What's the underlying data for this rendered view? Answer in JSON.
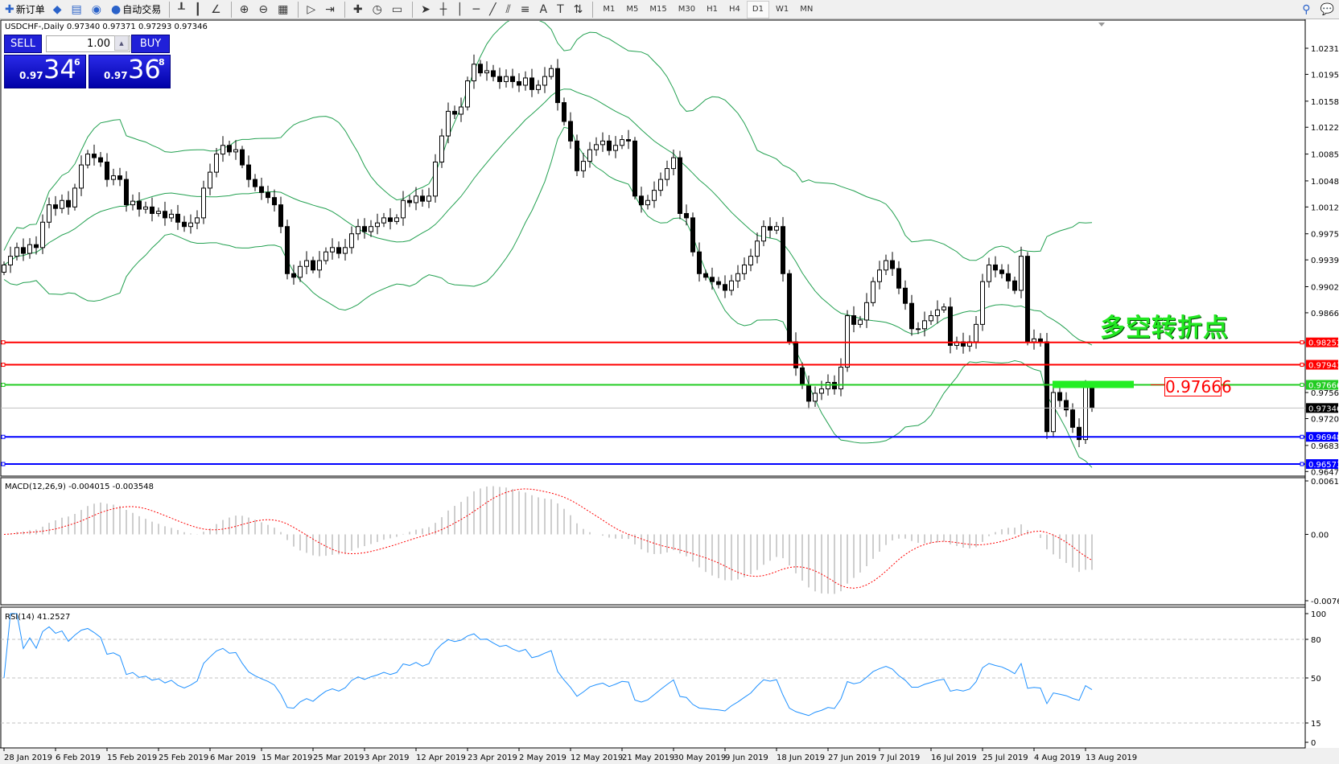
{
  "toolbar": {
    "items": [
      {
        "label": "新订单",
        "icon": "new-order-icon"
      },
      {
        "label": "",
        "icon": "market-watch-icon"
      },
      {
        "label": "",
        "icon": "navigator-icon"
      },
      {
        "label": "",
        "icon": "signals-icon"
      },
      {
        "label": "自动交易",
        "icon": "auto-trading-icon"
      }
    ],
    "tools": [
      "bar-chart-icon",
      "candlestick-icon",
      "line-chart-icon",
      "zoom-in-icon",
      "zoom-out-icon",
      "tile-windows-icon",
      "auto-scroll-icon",
      "chart-shift-icon",
      "indicators-icon",
      "periods-icon",
      "templates-icon",
      "cursor-icon",
      "crosshair-icon",
      "vertical-line-icon",
      "horizontal-line-icon",
      "trendline-icon",
      "equidistant-channel-icon",
      "fibonacci-icon",
      "text-icon",
      "text-label-icon",
      "arrows-icon"
    ],
    "timeframes": [
      "M1",
      "M5",
      "M15",
      "M30",
      "H1",
      "H4",
      "D1",
      "W1",
      "MN"
    ],
    "active_timeframe": "D1"
  },
  "chart": {
    "title": "USDCHF-,Daily  0.97340 0.97371 0.97293 0.97346",
    "annotation": "多空转折点",
    "annotation_price": "0.97666"
  },
  "trade_panel": {
    "sell_label": "SELL",
    "buy_label": "BUY",
    "lot": "1.00",
    "sell_small": "0.97",
    "sell_big": "34",
    "sell_pip": "6",
    "buy_small": "0.97",
    "buy_big": "36",
    "buy_pip": "8"
  },
  "macd": {
    "label": "MACD(12,26,9) -0.004015 -0.003548",
    "ticks": [
      "0.00613",
      "0.00",
      "-0.00761"
    ]
  },
  "rsi": {
    "label": "RSI(14) 41.2527",
    "ticks": [
      "100",
      "80",
      "50",
      "15",
      "0"
    ]
  },
  "colors": {
    "resistance": "#ff0000",
    "pivot": "#22cc22",
    "support": "#0000ff",
    "bands": "#22a050",
    "macd_signal": "#ff0000",
    "rsi": "#1e90ff"
  },
  "chart_data": {
    "type": "candlestick",
    "symbol": "USDCHF-",
    "timeframe": "Daily",
    "price_ticks": [
      "1.02310",
      "1.01950",
      "1.01580",
      "1.01220",
      "1.00850",
      "1.00480",
      "1.00120",
      "0.99750",
      "0.99390",
      "0.99020",
      "0.98660",
      "0.97560",
      "0.97200",
      "0.96830",
      "0.96470"
    ],
    "ylim": [
      0.9647,
      1.0265
    ],
    "date_labels": [
      "28 Jan 2019",
      "6 Feb 2019",
      "15 Feb 2019",
      "25 Feb 2019",
      "6 Mar 2019",
      "15 Mar 2019",
      "25 Mar 2019",
      "3 Apr 2019",
      "12 Apr 2019",
      "23 Apr 2019",
      "2 May 2019",
      "12 May 2019",
      "21 May 2019",
      "30 May 2019",
      "9 Jun 2019",
      "18 Jun 2019",
      "27 Jun 2019",
      "7 Jul 2019",
      "16 Jul 2019",
      "25 Jul 2019",
      "4 Aug 2019",
      "13 Aug 2019"
    ],
    "closes": [
      0.9932,
      0.9944,
      0.9956,
      0.9948,
      0.996,
      0.9956,
      0.9991,
      1.0015,
      1.001,
      1.0021,
      1.0012,
      1.0038,
      1.007,
      1.0085,
      1.008,
      1.0074,
      1.005,
      1.0055,
      1.005,
      1.0015,
      1.002,
      1.0009,
      1.0012,
      1.0003,
      1.0006,
      0.9997,
      1.0002,
      0.9991,
      0.9985,
      0.999,
      0.9997,
      1.0038,
      1.006,
      1.0085,
      1.0097,
      1.0088,
      1.0091,
      1.007,
      1.005,
      1.004,
      1.0032,
      1.0025,
      1.0015,
      0.9985,
      0.992,
      0.9915,
      0.993,
      0.9938,
      0.9925,
      0.9938,
      0.995,
      0.9956,
      0.9948,
      0.9956,
      0.9975,
      0.9985,
      0.9978,
      0.9985,
      0.999,
      0.9997,
      0.9992,
      0.9997,
      1.0021,
      1.0018,
      1.0027,
      1.002,
      1.0027,
      1.0074,
      1.011,
      1.0144,
      1.014,
      1.015,
      1.0186,
      1.0209,
      1.0197,
      1.02,
      1.0192,
      1.0185,
      1.0192,
      1.0185,
      1.018,
      1.019,
      1.0174,
      1.018,
      1.0192,
      1.0203,
      1.0156,
      1.013,
      1.0103,
      1.0062,
      1.0075,
      1.0091,
      1.0098,
      1.0103,
      1.009,
      1.0097,
      1.0105,
      1.0103,
      1.0027,
      1.0015,
      1.0021,
      1.0035,
      1.005,
      1.0065,
      1.008,
      1.0003,
      0.9997,
      0.995,
      0.992,
      0.9915,
      0.9909,
      0.9905,
      0.9897,
      0.991,
      0.992,
      0.9932,
      0.9944,
      0.9965,
      0.9985,
      0.998,
      0.9985,
      0.992,
      0.9826,
      0.979,
      0.9767,
      0.9744,
      0.9755,
      0.9761,
      0.977,
      0.9761,
      0.9791,
      0.9862,
      0.985,
      0.9856,
      0.988,
      0.9909,
      0.9925,
      0.9938,
      0.9927,
      0.99,
      0.9879,
      0.9844,
      0.9844,
      0.9855,
      0.9862,
      0.987,
      0.9874,
      0.9821,
      0.9826,
      0.982,
      0.9826,
      0.985,
      0.9909,
      0.9932,
      0.9925,
      0.992,
      0.991,
      0.9897,
      0.9944,
      0.9826,
      0.983,
      0.9826,
      0.9702,
      0.9756,
      0.9745,
      0.9732,
      0.9708,
      0.9691,
      0.9766,
      0.97346
    ],
    "last_bar": {
      "open": 0.9734,
      "high": 0.97371,
      "low": 0.97293,
      "close": 0.97346
    },
    "horizontal_lines": [
      {
        "price": 0.98252,
        "label": "0.98252",
        "color": "#ff0000"
      },
      {
        "price": 0.97943,
        "label": "0.97943",
        "color": "#ff0000"
      },
      {
        "price": 0.97666,
        "label": "0.97666",
        "color": "#22cc22"
      },
      {
        "price": 0.96948,
        "label": "0.96948",
        "color": "#0000ff"
      },
      {
        "price": 0.96573,
        "label": "0.96573",
        "color": "#0000ff"
      }
    ],
    "current_price": {
      "price": 0.97346,
      "label": "0.97346"
    },
    "indicators": [
      "Bollinger Bands(20,2)",
      "MACD(12,26,9)",
      "RSI(14)"
    ],
    "macd_range": [
      -0.00761,
      0.00613
    ],
    "rsi_levels": [
      80,
      50,
      15
    ]
  }
}
